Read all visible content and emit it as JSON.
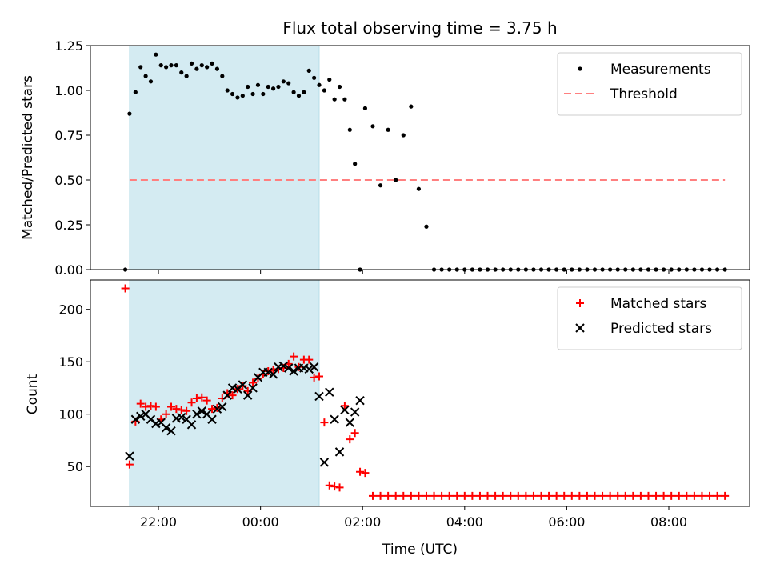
{
  "chart_data": [
    {
      "type": "scatter",
      "title": "Flux total observing time = 3.75 h",
      "xlabel": "",
      "ylabel": "Matched/Predicted stars",
      "ylim": [
        0,
        1.25
      ],
      "xlim": [
        "20:40",
        "09:35"
      ],
      "yticks": [
        "0.00",
        "0.25",
        "0.50",
        "0.75",
        "1.00",
        "1.25"
      ],
      "highlight_span": {
        "start": "21:26",
        "end": "01:09",
        "color": "#d4ebf2"
      },
      "legend": {
        "placement": "top-right",
        "entries": [
          "Measurements",
          "Threshold"
        ]
      },
      "series": [
        {
          "name": "Measurements",
          "color": "#000000",
          "marker": "dot",
          "x": [
            "21:21",
            "21:26",
            "21:33",
            "21:39",
            "21:45",
            "21:51",
            "21:57",
            "22:03",
            "22:09",
            "22:15",
            "22:21",
            "22:27",
            "22:33",
            "22:39",
            "22:45",
            "22:51",
            "22:57",
            "23:03",
            "23:09",
            "23:15",
            "23:21",
            "23:27",
            "23:33",
            "23:39",
            "23:45",
            "23:51",
            "23:57",
            "00:03",
            "00:09",
            "00:15",
            "00:21",
            "00:27",
            "00:33",
            "00:39",
            "00:45",
            "00:51",
            "00:57",
            "01:03",
            "01:09",
            "01:15",
            "01:21",
            "01:27",
            "01:33",
            "01:39",
            "01:45",
            "01:51",
            "01:57",
            "02:03",
            "02:12",
            "02:21",
            "02:30",
            "02:39",
            "02:48",
            "02:57",
            "03:06",
            "03:15",
            "03:24",
            "03:33",
            "03:42",
            "03:51",
            "04:00",
            "04:09",
            "04:18",
            "04:27",
            "04:36",
            "04:45",
            "04:54",
            "05:03",
            "05:12",
            "05:21",
            "05:30",
            "05:39",
            "05:48",
            "05:57",
            "06:06",
            "06:15",
            "06:24",
            "06:33",
            "06:42",
            "06:51",
            "07:00",
            "07:09",
            "07:18",
            "07:27",
            "07:36",
            "07:45",
            "07:54",
            "08:03",
            "08:12",
            "08:21",
            "08:30",
            "08:39",
            "08:48",
            "08:57",
            "09:06"
          ],
          "y": [
            0.0,
            0.87,
            0.99,
            1.13,
            1.08,
            1.05,
            1.2,
            1.14,
            1.13,
            1.14,
            1.14,
            1.1,
            1.08,
            1.15,
            1.12,
            1.14,
            1.13,
            1.15,
            1.12,
            1.08,
            1.0,
            0.98,
            0.96,
            0.97,
            1.02,
            0.98,
            1.03,
            0.98,
            1.02,
            1.01,
            1.02,
            1.05,
            1.04,
            0.99,
            0.97,
            0.99,
            1.11,
            1.07,
            1.03,
            1.0,
            1.06,
            0.95,
            1.02,
            0.95,
            0.78,
            0.59,
            0.0,
            0.9,
            0.8,
            0.47,
            0.78,
            0.5,
            0.75,
            0.91,
            0.45,
            0.24,
            0.0,
            0.0,
            0.0,
            0.0,
            0.0,
            0.0,
            0.0,
            0.0,
            0.0,
            0.0,
            0.0,
            0.0,
            0.0,
            0.0,
            0.0,
            0.0,
            0.0,
            0.0,
            0.0,
            0.0,
            0.0,
            0.0,
            0.0,
            0.0,
            0.0,
            0.0,
            0.0,
            0.0,
            0.0,
            0.0,
            0.0,
            0.0,
            0.0,
            0.0,
            0.0,
            0.0,
            0.0,
            0.0,
            0.0
          ]
        },
        {
          "name": "Threshold",
          "color": "#ff7f7f",
          "marker": "dashed-line",
          "x": [
            "21:26",
            "09:06"
          ],
          "y": [
            0.5,
            0.5
          ]
        }
      ]
    },
    {
      "type": "scatter",
      "title": "",
      "xlabel": "Time (UTC)",
      "ylabel": "Count",
      "ylim": [
        12,
        228
      ],
      "xlim": [
        "20:40",
        "09:35"
      ],
      "xticks": [
        "22:00",
        "00:00",
        "02:00",
        "04:00",
        "06:00",
        "08:00"
      ],
      "yticks": [
        "50",
        "100",
        "150",
        "200"
      ],
      "highlight_span": {
        "start": "21:26",
        "end": "01:09",
        "color": "#d4ebf2"
      },
      "legend": {
        "placement": "top-right",
        "entries": [
          "Matched stars",
          "Predicted stars"
        ]
      },
      "series": [
        {
          "name": "Matched stars",
          "color": "#ff0000",
          "marker": "plus",
          "x": [
            "21:21",
            "21:26",
            "21:33",
            "21:39",
            "21:45",
            "21:51",
            "21:57",
            "22:03",
            "22:09",
            "22:15",
            "22:21",
            "22:27",
            "22:33",
            "22:39",
            "22:45",
            "22:51",
            "22:57",
            "23:03",
            "23:09",
            "23:15",
            "23:21",
            "23:27",
            "23:33",
            "23:39",
            "23:45",
            "23:51",
            "23:57",
            "00:03",
            "00:09",
            "00:15",
            "00:21",
            "00:27",
            "00:33",
            "00:39",
            "00:45",
            "00:51",
            "00:57",
            "01:03",
            "01:09",
            "01:15",
            "01:21",
            "01:27",
            "01:33",
            "01:39",
            "01:45",
            "01:51",
            "01:57",
            "02:03",
            "02:12",
            "02:21",
            "02:30",
            "02:39",
            "02:48",
            "02:57",
            "03:06",
            "03:15",
            "03:24",
            "03:33",
            "03:42",
            "03:51",
            "04:00",
            "04:09",
            "04:18",
            "04:27",
            "04:36",
            "04:45",
            "04:54",
            "05:03",
            "05:12",
            "05:21",
            "05:30",
            "05:39",
            "05:48",
            "05:57",
            "06:06",
            "06:15",
            "06:24",
            "06:33",
            "06:42",
            "06:51",
            "07:00",
            "07:09",
            "07:18",
            "07:27",
            "07:36",
            "07:45",
            "07:54",
            "08:03",
            "08:12",
            "08:21",
            "08:30",
            "08:39",
            "08:48",
            "08:57",
            "09:06"
          ],
          "y": [
            220,
            52,
            93,
            110,
            107,
            108,
            107,
            95,
            100,
            107,
            105,
            104,
            103,
            111,
            115,
            116,
            113,
            105,
            106,
            115,
            120,
            118,
            124,
            127,
            122,
            130,
            134,
            138,
            141,
            142,
            143,
            144,
            148,
            155,
            145,
            152,
            152,
            135,
            136,
            92,
            32,
            31,
            30,
            108,
            76,
            82,
            45,
            44,
            22,
            22,
            22,
            22,
            22,
            22,
            22,
            22,
            22,
            22,
            22,
            22,
            22,
            22,
            22,
            22,
            22,
            22,
            22,
            22,
            22,
            22,
            22,
            22,
            22,
            22,
            22,
            22,
            22,
            22,
            22,
            22,
            22,
            22,
            22,
            22,
            22,
            22,
            22,
            22,
            22,
            22,
            22,
            22,
            22,
            22,
            22
          ]
        },
        {
          "name": "Predicted stars",
          "color": "#000000",
          "marker": "x",
          "x": [
            "21:26",
            "21:33",
            "21:39",
            "21:45",
            "21:51",
            "21:57",
            "22:03",
            "22:09",
            "22:15",
            "22:21",
            "22:27",
            "22:33",
            "22:39",
            "22:45",
            "22:51",
            "22:57",
            "23:03",
            "23:09",
            "23:15",
            "23:21",
            "23:27",
            "23:33",
            "23:39",
            "23:45",
            "23:51",
            "23:57",
            "00:03",
            "00:09",
            "00:15",
            "00:21",
            "00:27",
            "00:33",
            "00:39",
            "00:45",
            "00:51",
            "00:57",
            "01:03",
            "01:09",
            "01:15",
            "01:21",
            "01:27",
            "01:33",
            "01:39",
            "01:45",
            "01:51",
            "01:57"
          ],
          "y": [
            60,
            95,
            98,
            100,
            95,
            91,
            92,
            87,
            84,
            96,
            97,
            95,
            90,
            100,
            103,
            100,
            95,
            105,
            107,
            118,
            125,
            124,
            128,
            118,
            125,
            135,
            140,
            140,
            138,
            145,
            146,
            144,
            141,
            144,
            144,
            143,
            145,
            117,
            54,
            121,
            95,
            64,
            104,
            92,
            102,
            113
          ]
        }
      ]
    }
  ]
}
